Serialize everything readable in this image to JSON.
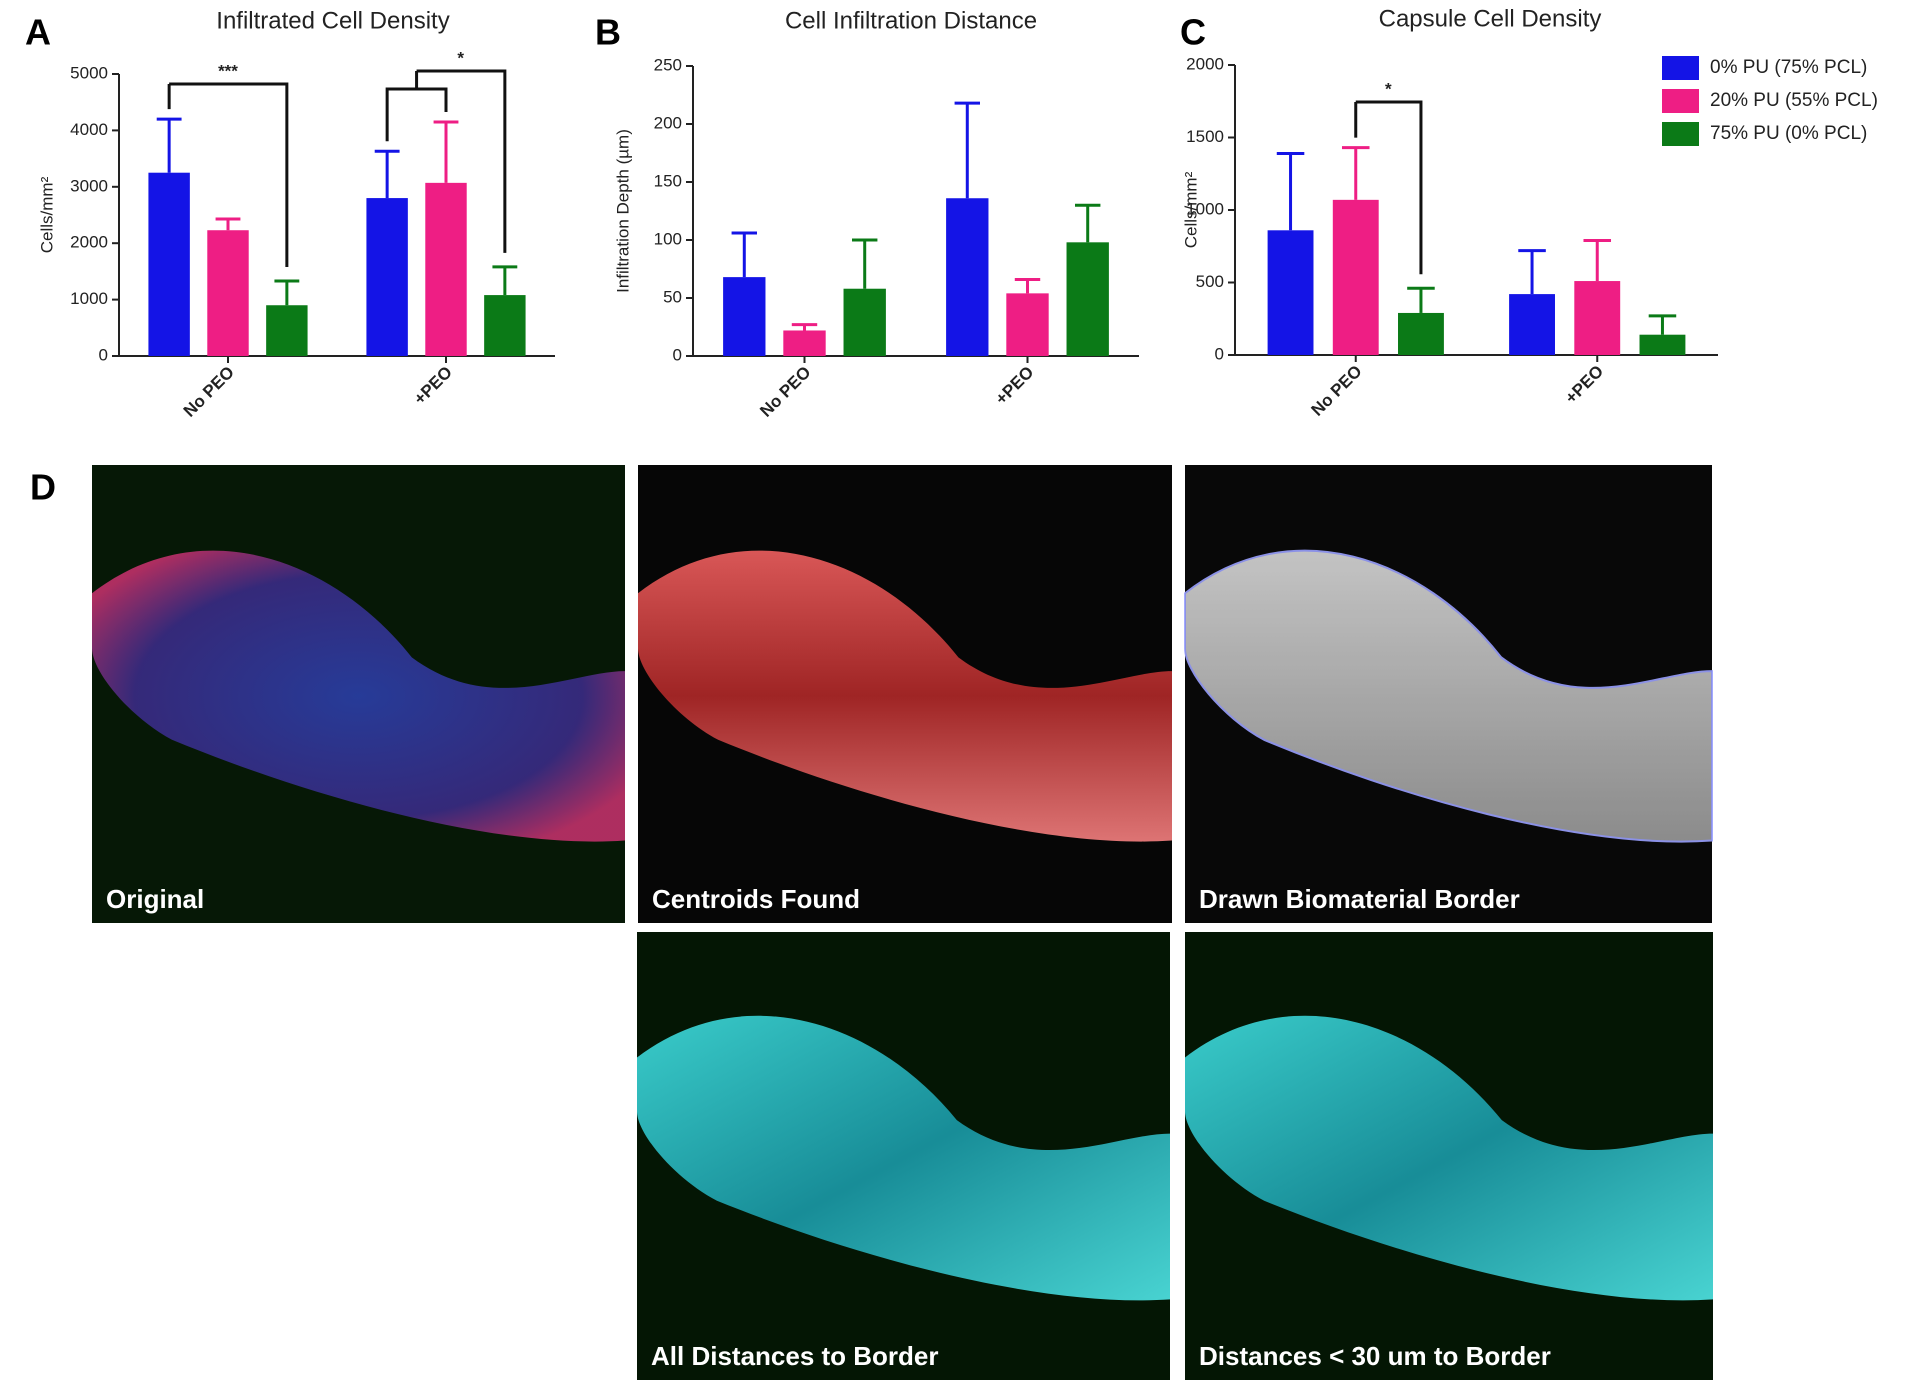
{
  "chart_data": [
    {
      "type": "bar",
      "label": "A",
      "title": "Infiltrated Cell Density",
      "y_label": "Cells/mm²",
      "categories": [
        "No PEO",
        "+PEO"
      ],
      "series": [
        {
          "color": "#1414e6",
          "values": [
            3250,
            2800
          ],
          "errors": [
            950,
            830
          ]
        },
        {
          "color": "#ee1e84",
          "values": [
            2230,
            3070
          ],
          "errors": [
            200,
            1080
          ]
        },
        {
          "color": "#0b7a17",
          "values": [
            900,
            1080
          ],
          "errors": [
            430,
            500
          ]
        }
      ],
      "ylim": [
        0,
        5000
      ],
      "yticks": [
        0,
        1000,
        2000,
        3000,
        4000,
        5000
      ],
      "annotations": [
        "***",
        "*"
      ]
    },
    {
      "type": "bar",
      "label": "B",
      "title": "Cell Infiltration Distance",
      "y_label": "Infiltration Depth (µm)",
      "categories": [
        "No PEO",
        "+PEO"
      ],
      "series": [
        {
          "color": "#1414e6",
          "values": [
            68,
            136
          ],
          "errors": [
            38,
            82
          ]
        },
        {
          "color": "#ee1e84",
          "values": [
            22,
            54
          ],
          "errors": [
            5,
            12
          ]
        },
        {
          "color": "#0b7a17",
          "values": [
            58,
            98
          ],
          "errors": [
            42,
            32
          ]
        }
      ],
      "ylim": [
        0,
        250
      ],
      "yticks": [
        0,
        50,
        100,
        150,
        200,
        250
      ]
    },
    {
      "type": "bar",
      "label": "C",
      "title": "Capsule Cell Density",
      "y_label": "Cells/mm²",
      "categories": [
        "No PEO",
        "+PEO"
      ],
      "series": [
        {
          "name": "0% PU (75% PCL)",
          "color": "#1414e6",
          "values": [
            860,
            420
          ],
          "errors": [
            530,
            300
          ]
        },
        {
          "name": "20% PU (55% PCL)",
          "color": "#ee1e84",
          "values": [
            1070,
            510
          ],
          "errors": [
            360,
            280
          ]
        },
        {
          "name": "75% PU (0% PCL)",
          "color": "#0b7a17",
          "values": [
            290,
            140
          ],
          "errors": [
            170,
            130
          ]
        }
      ],
      "ylim": [
        0,
        2000
      ],
      "yticks": [
        0,
        500,
        1000,
        1500,
        2000
      ],
      "annotations": [
        "*"
      ],
      "legend": "right"
    }
  ],
  "panel_d": {
    "label": "D",
    "images": [
      {
        "caption": "Original"
      },
      {
        "caption": "Centroids Found"
      },
      {
        "caption": "Drawn Biomaterial Border"
      },
      {
        "caption": "All Distances to Border"
      },
      {
        "caption": "Distances < 30 um to Border"
      }
    ]
  }
}
